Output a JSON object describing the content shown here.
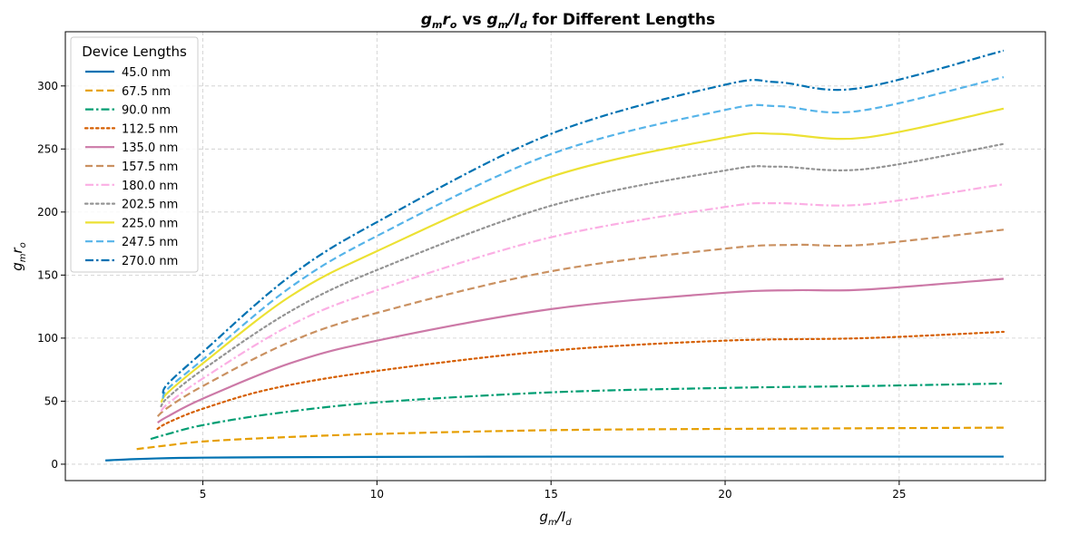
{
  "chart_data": {
    "type": "line",
    "title": "g_m r_o vs g_m/I_d for Different Lengths",
    "title_parts": {
      "pre": "g",
      "pre_sub": "m",
      "mid": "r",
      "mid_sub": "o",
      "vs": " vs ",
      "g2": "g",
      "g2_sub": "m",
      "slash": "/I",
      "slash_sub": "d",
      "post": " for Different Lengths"
    },
    "xlabel": "g_m/I_d",
    "ylabel": "g_m r_o",
    "xlim": [
      1.05,
      29.2
    ],
    "ylim": [
      -13,
      343
    ],
    "xticks": [
      5,
      10,
      15,
      20,
      25
    ],
    "yticks": [
      0,
      50,
      100,
      150,
      200,
      250,
      300
    ],
    "grid": true,
    "legend": {
      "title": "Device Lengths",
      "position": "top-left"
    },
    "series": [
      {
        "name": "45.0 nm",
        "color": "#0072b2",
        "dash": "solid",
        "x": [
          2.2,
          3,
          4,
          5,
          7,
          10,
          15,
          20,
          24,
          28
        ],
        "y": [
          3,
          4,
          4.8,
          5.2,
          5.5,
          5.8,
          6,
          6,
          6,
          6
        ]
      },
      {
        "name": "67.5 nm",
        "color": "#e69f00",
        "dash": "dashed",
        "x": [
          3.1,
          4,
          5,
          7,
          10,
          15,
          20,
          24,
          28
        ],
        "y": [
          12,
          15,
          18,
          21,
          24,
          27,
          28,
          28.5,
          29
        ]
      },
      {
        "name": "90.0 nm",
        "color": "#009e73",
        "dash": "dashdot",
        "x": [
          3.5,
          4,
          5,
          7,
          10,
          15,
          20,
          24,
          28
        ],
        "y": [
          20,
          24,
          31,
          40,
          49,
          57,
          60.5,
          62,
          64
        ]
      },
      {
        "name": "112.5 nm",
        "color": "#d55e00",
        "dash": "dotted",
        "x": [
          3.7,
          4,
          5,
          7,
          10,
          15,
          20,
          24,
          28
        ],
        "y": [
          28,
          33,
          44,
          60,
          74,
          90,
          98,
          100,
          105
        ]
      },
      {
        "name": "135.0 nm",
        "color": "#cc79a7",
        "dash": "solid",
        "x": [
          3.7,
          4,
          5,
          7.5,
          10,
          15,
          20,
          22,
          24,
          28
        ],
        "y": [
          33,
          38,
          52,
          80,
          98,
          123,
          136,
          138,
          138.5,
          147
        ]
      },
      {
        "name": "157.5 nm",
        "color": "#ca9161",
        "dash": "dashed",
        "x": [
          3.7,
          4,
          5,
          7.5,
          10,
          15,
          20,
          22,
          24,
          28
        ],
        "y": [
          38,
          45,
          62,
          97,
          120,
          153,
          171,
          174,
          174,
          186
        ]
      },
      {
        "name": "180.0 nm",
        "color": "#fbafe4",
        "dash": "dashdot",
        "x": [
          3.8,
          4,
          5,
          7.5,
          10,
          15,
          20,
          21.5,
          24,
          28
        ],
        "y": [
          42,
          48,
          68,
          110,
          138,
          180,
          204,
          207,
          206,
          222
        ]
      },
      {
        "name": "202.5 nm",
        "color": "#949494",
        "dash": "dotted",
        "x": [
          3.8,
          4,
          5,
          7.5,
          10,
          15,
          20,
          21.5,
          24,
          28
        ],
        "y": [
          46,
          53,
          75,
          121,
          154,
          205,
          233,
          236,
          234,
          254
        ]
      },
      {
        "name": "225.0 nm",
        "color": "#ece133",
        "dash": "solid",
        "x": [
          3.8,
          4,
          5,
          7.5,
          10,
          15,
          20,
          21.5,
          24,
          28
        ],
        "y": [
          49,
          57,
          80,
          133,
          169,
          228,
          259,
          262,
          259,
          282
        ]
      },
      {
        "name": "247.5 nm",
        "color": "#56b4e9",
        "dash": "dashed",
        "x": [
          3.85,
          4,
          5,
          7.5,
          10,
          15,
          20,
          21.5,
          23.8,
          28
        ],
        "y": [
          52,
          60,
          83,
          140,
          181,
          246,
          281,
          284,
          280,
          307
        ]
      },
      {
        "name": "270.0 nm",
        "color": "#0072b2",
        "dash": "dashdot",
        "x": [
          3.85,
          4,
          5,
          7.5,
          10,
          15,
          20,
          21.5,
          23.8,
          28
        ],
        "y": [
          56,
          64,
          89,
          149,
          192,
          262,
          301,
          303,
          298,
          328
        ]
      }
    ]
  }
}
